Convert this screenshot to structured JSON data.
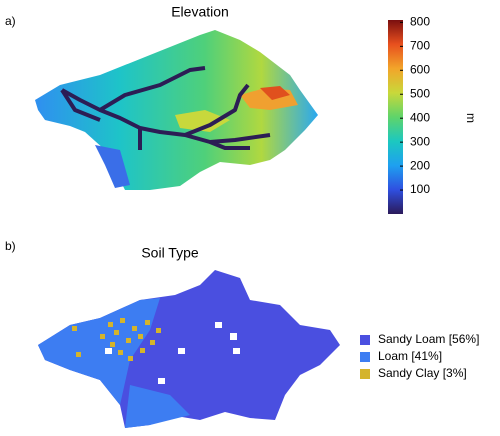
{
  "chart_data": [
    {
      "type": "heatmap",
      "panel_label": "a)",
      "title": "Elevation",
      "colorbar_label": "m",
      "ylim": [
        0,
        810
      ],
      "yticks": [
        100,
        200,
        300,
        400,
        500,
        600,
        700,
        800
      ],
      "colormap": [
        "#2b1a5a",
        "#2f4fe0",
        "#1ea0f0",
        "#1cc8c0",
        "#5fd46a",
        "#c9d83a",
        "#f2a52a",
        "#e8501e",
        "#7a0f0f"
      ]
    },
    {
      "type": "categorical_map",
      "panel_label": "b)",
      "title": "Soil Type",
      "series": [
        {
          "name": "Sandy Loam [56%]",
          "color": "#4a4fe0"
        },
        {
          "name": "Loam [41%]",
          "color": "#3d7df2"
        },
        {
          "name": "Sandy Clay [3%]",
          "color": "#d4b42c"
        }
      ]
    }
  ]
}
